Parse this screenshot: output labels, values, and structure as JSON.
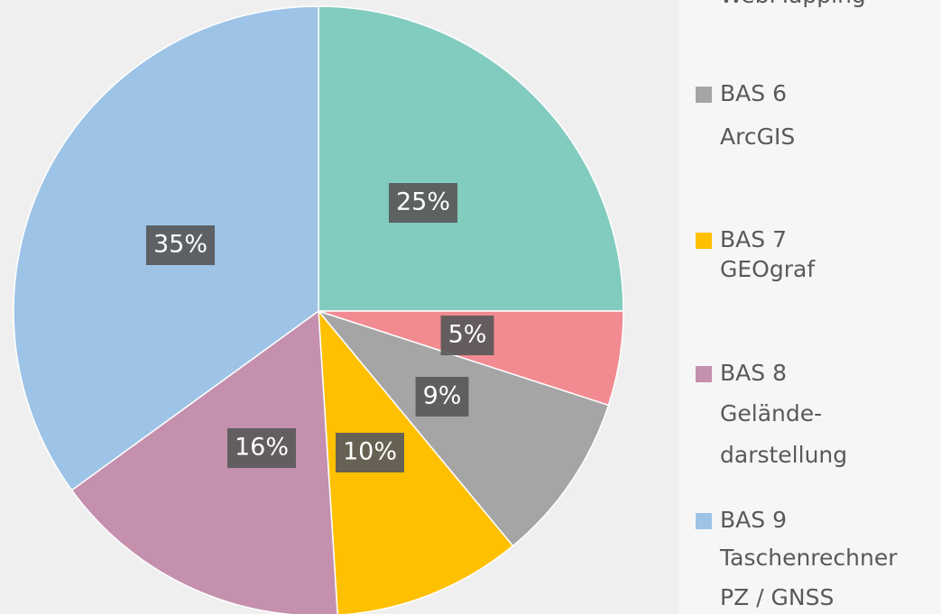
{
  "chart_data": {
    "type": "pie",
    "categories": [
      null,
      [
        "WebMapping"
      ],
      [
        "BAS 6",
        "ArcGIS"
      ],
      [
        "BAS 7",
        "GEOgraf"
      ],
      [
        "BAS 8",
        "Gelände-",
        "darstellung"
      ],
      [
        "BAS 9",
        "Taschenrechner",
        "PZ / GNSS"
      ]
    ],
    "values": [
      25,
      5,
      9,
      10,
      16,
      35
    ],
    "value_labels": [
      "25%",
      "5%",
      "9%",
      "10%",
      "16%",
      "35%"
    ],
    "colors": [
      "#82cbbf",
      "#f28a91",
      "#a5a5a5",
      "#ffc000",
      "#c490ad",
      "#9dc3e6"
    ],
    "legend": "right"
  }
}
